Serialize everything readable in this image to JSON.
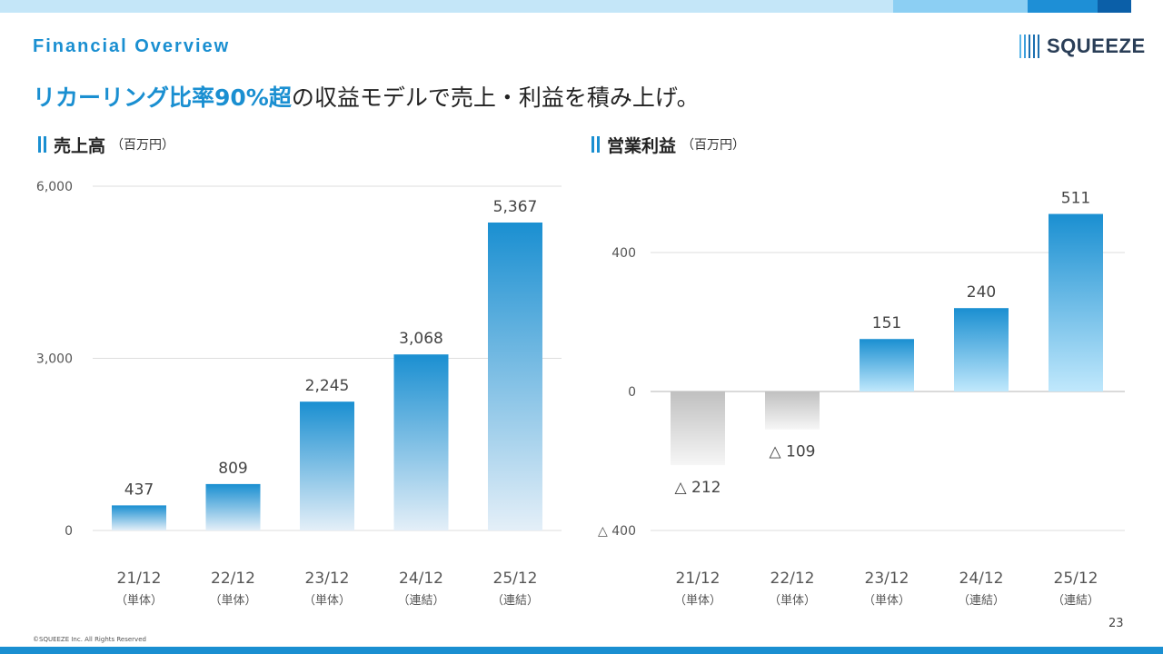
{
  "header": {
    "title": "Financial Overview"
  },
  "logo": {
    "text": "SQUEEZE"
  },
  "headline": {
    "accent": "リカーリング比率90%超",
    "rest": "の収益モデルで売上・利益を積み上げ。"
  },
  "footer": {
    "copyright": "©SQUEEZE Inc. All Rights Reserved",
    "page_number": "23"
  },
  "colors": {
    "accent": "#1a8fd1",
    "bar_top": "#1a8fd1",
    "bar_bottom": "#e4eff8",
    "op_bar_bottom": "#c0e8fc",
    "negative_bar": "#c0c0c0"
  },
  "chart_data": [
    {
      "type": "bar",
      "title": "売上高",
      "unit": "（百万円）",
      "categories": [
        "21/12",
        "22/12",
        "23/12",
        "24/12",
        "25/12"
      ],
      "category_notes": [
        "（単体）",
        "（単体）",
        "（単体）",
        "（連結）",
        "（連結）"
      ],
      "values": [
        437,
        809,
        2245,
        3068,
        5367
      ],
      "value_labels": [
        "437",
        "809",
        "2,245",
        "3,068",
        "5,367"
      ],
      "ylim": [
        0,
        6000
      ],
      "y_ticks": [
        0,
        3000,
        6000
      ],
      "y_tick_labels": [
        "0",
        "3,000",
        "6,000"
      ],
      "grid": true
    },
    {
      "type": "bar",
      "title": "営業利益",
      "unit": "（百万円）",
      "categories": [
        "21/12",
        "22/12",
        "23/12",
        "24/12",
        "25/12"
      ],
      "category_notes": [
        "（単体）",
        "（単体）",
        "（単体）",
        "（連結）",
        "（連結）"
      ],
      "values": [
        -212,
        -109,
        151,
        240,
        511
      ],
      "value_labels": [
        "△ 212",
        "△ 109",
        "151",
        "240",
        "511"
      ],
      "ylim": [
        -400,
        400
      ],
      "y_ticks": [
        -400,
        0,
        400
      ],
      "y_tick_labels": [
        "△ 400",
        "0",
        "400"
      ],
      "grid": true
    }
  ]
}
